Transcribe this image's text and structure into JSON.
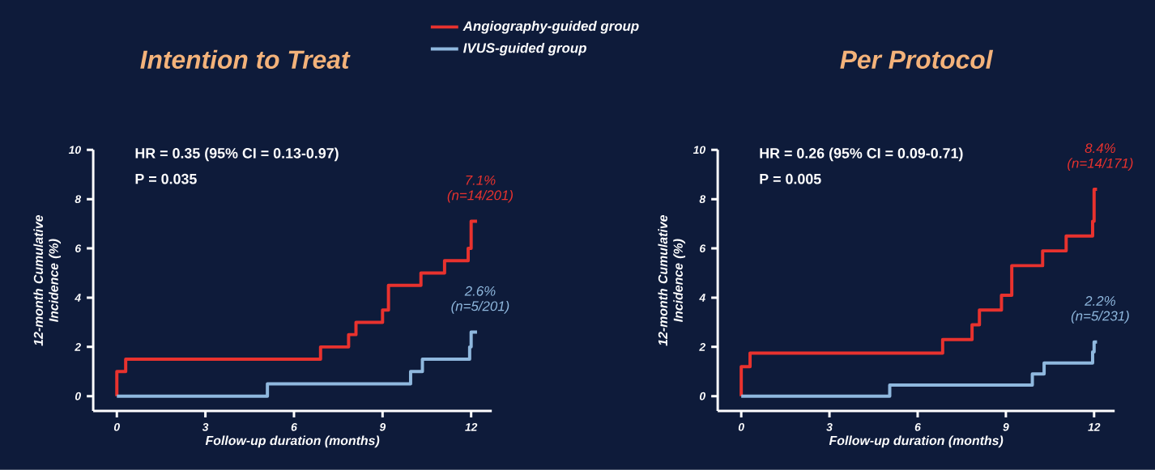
{
  "chart_data": [
    {
      "type": "step",
      "title": "Intention to Treat",
      "ylabel": "12-month Cumulative Incidence (%)",
      "xlabel": "Follow-up duration (months)",
      "xlim": [
        -0.8,
        12.7
      ],
      "ylim": [
        -0.6,
        10
      ],
      "xticks": [
        0,
        3,
        6,
        9,
        12
      ],
      "yticks": [
        0,
        2,
        4,
        6,
        8,
        10
      ],
      "legend": "top right",
      "grid": false,
      "series": [
        {
          "name": "Angiography-guided group",
          "color": "#e8322e",
          "x": [
            0,
            0,
            0.3,
            6.9,
            7.85,
            8.1,
            9.0,
            9.2,
            10.3,
            11.1,
            11.9,
            12.0,
            12.2
          ],
          "values": [
            0,
            1.0,
            1.5,
            2.0,
            2.5,
            3.0,
            3.5,
            4.5,
            5.0,
            5.5,
            6.0,
            7.1,
            7.1
          ]
        },
        {
          "name": "IVUS-guided group",
          "color": "#8fb8de",
          "x": [
            0,
            5.1,
            9.95,
            10.35,
            11.95,
            12.0,
            12.2
          ],
          "values": [
            0,
            0.5,
            1.0,
            1.5,
            2.0,
            2.6,
            2.6
          ]
        }
      ],
      "annotations": [
        "HR = 0.35 (95% CI = 0.13-0.97)",
        "P = 0.035",
        "7.1%",
        "(n=14/201)",
        "2.6%",
        "(n=5/201)"
      ]
    },
    {
      "type": "step",
      "title": "Per Protocol",
      "ylabel": "12-month Cumulative Incidence (%)",
      "xlabel": "Follow-up duration (months)",
      "xlim": [
        -0.8,
        12.7
      ],
      "ylim": [
        -0.6,
        10
      ],
      "xticks": [
        0,
        3,
        6,
        9,
        12
      ],
      "yticks": [
        0,
        2,
        4,
        6,
        8,
        10
      ],
      "grid": false,
      "series": [
        {
          "color": "#e8322e",
          "x": [
            0,
            0,
            0.3,
            6.85,
            7.85,
            8.1,
            8.85,
            9.2,
            10.25,
            11.05,
            11.95,
            12.0,
            12.1
          ],
          "values": [
            0,
            1.2,
            1.75,
            2.3,
            2.9,
            3.5,
            4.1,
            5.3,
            5.9,
            6.5,
            7.1,
            8.4,
            8.4
          ]
        },
        {
          "color": "#8fb8de",
          "x": [
            0,
            5.05,
            9.9,
            10.3,
            11.95,
            12.0,
            12.1
          ],
          "values": [
            0,
            0.45,
            0.9,
            1.35,
            1.8,
            2.2,
            2.2
          ]
        }
      ],
      "annotations": [
        "HR = 0.26 (95% CI = 0.09-0.71)",
        "P = 0.005",
        "8.4%",
        "(n=14/171)",
        "2.2%",
        "(n=5/231)"
      ]
    }
  ]
}
